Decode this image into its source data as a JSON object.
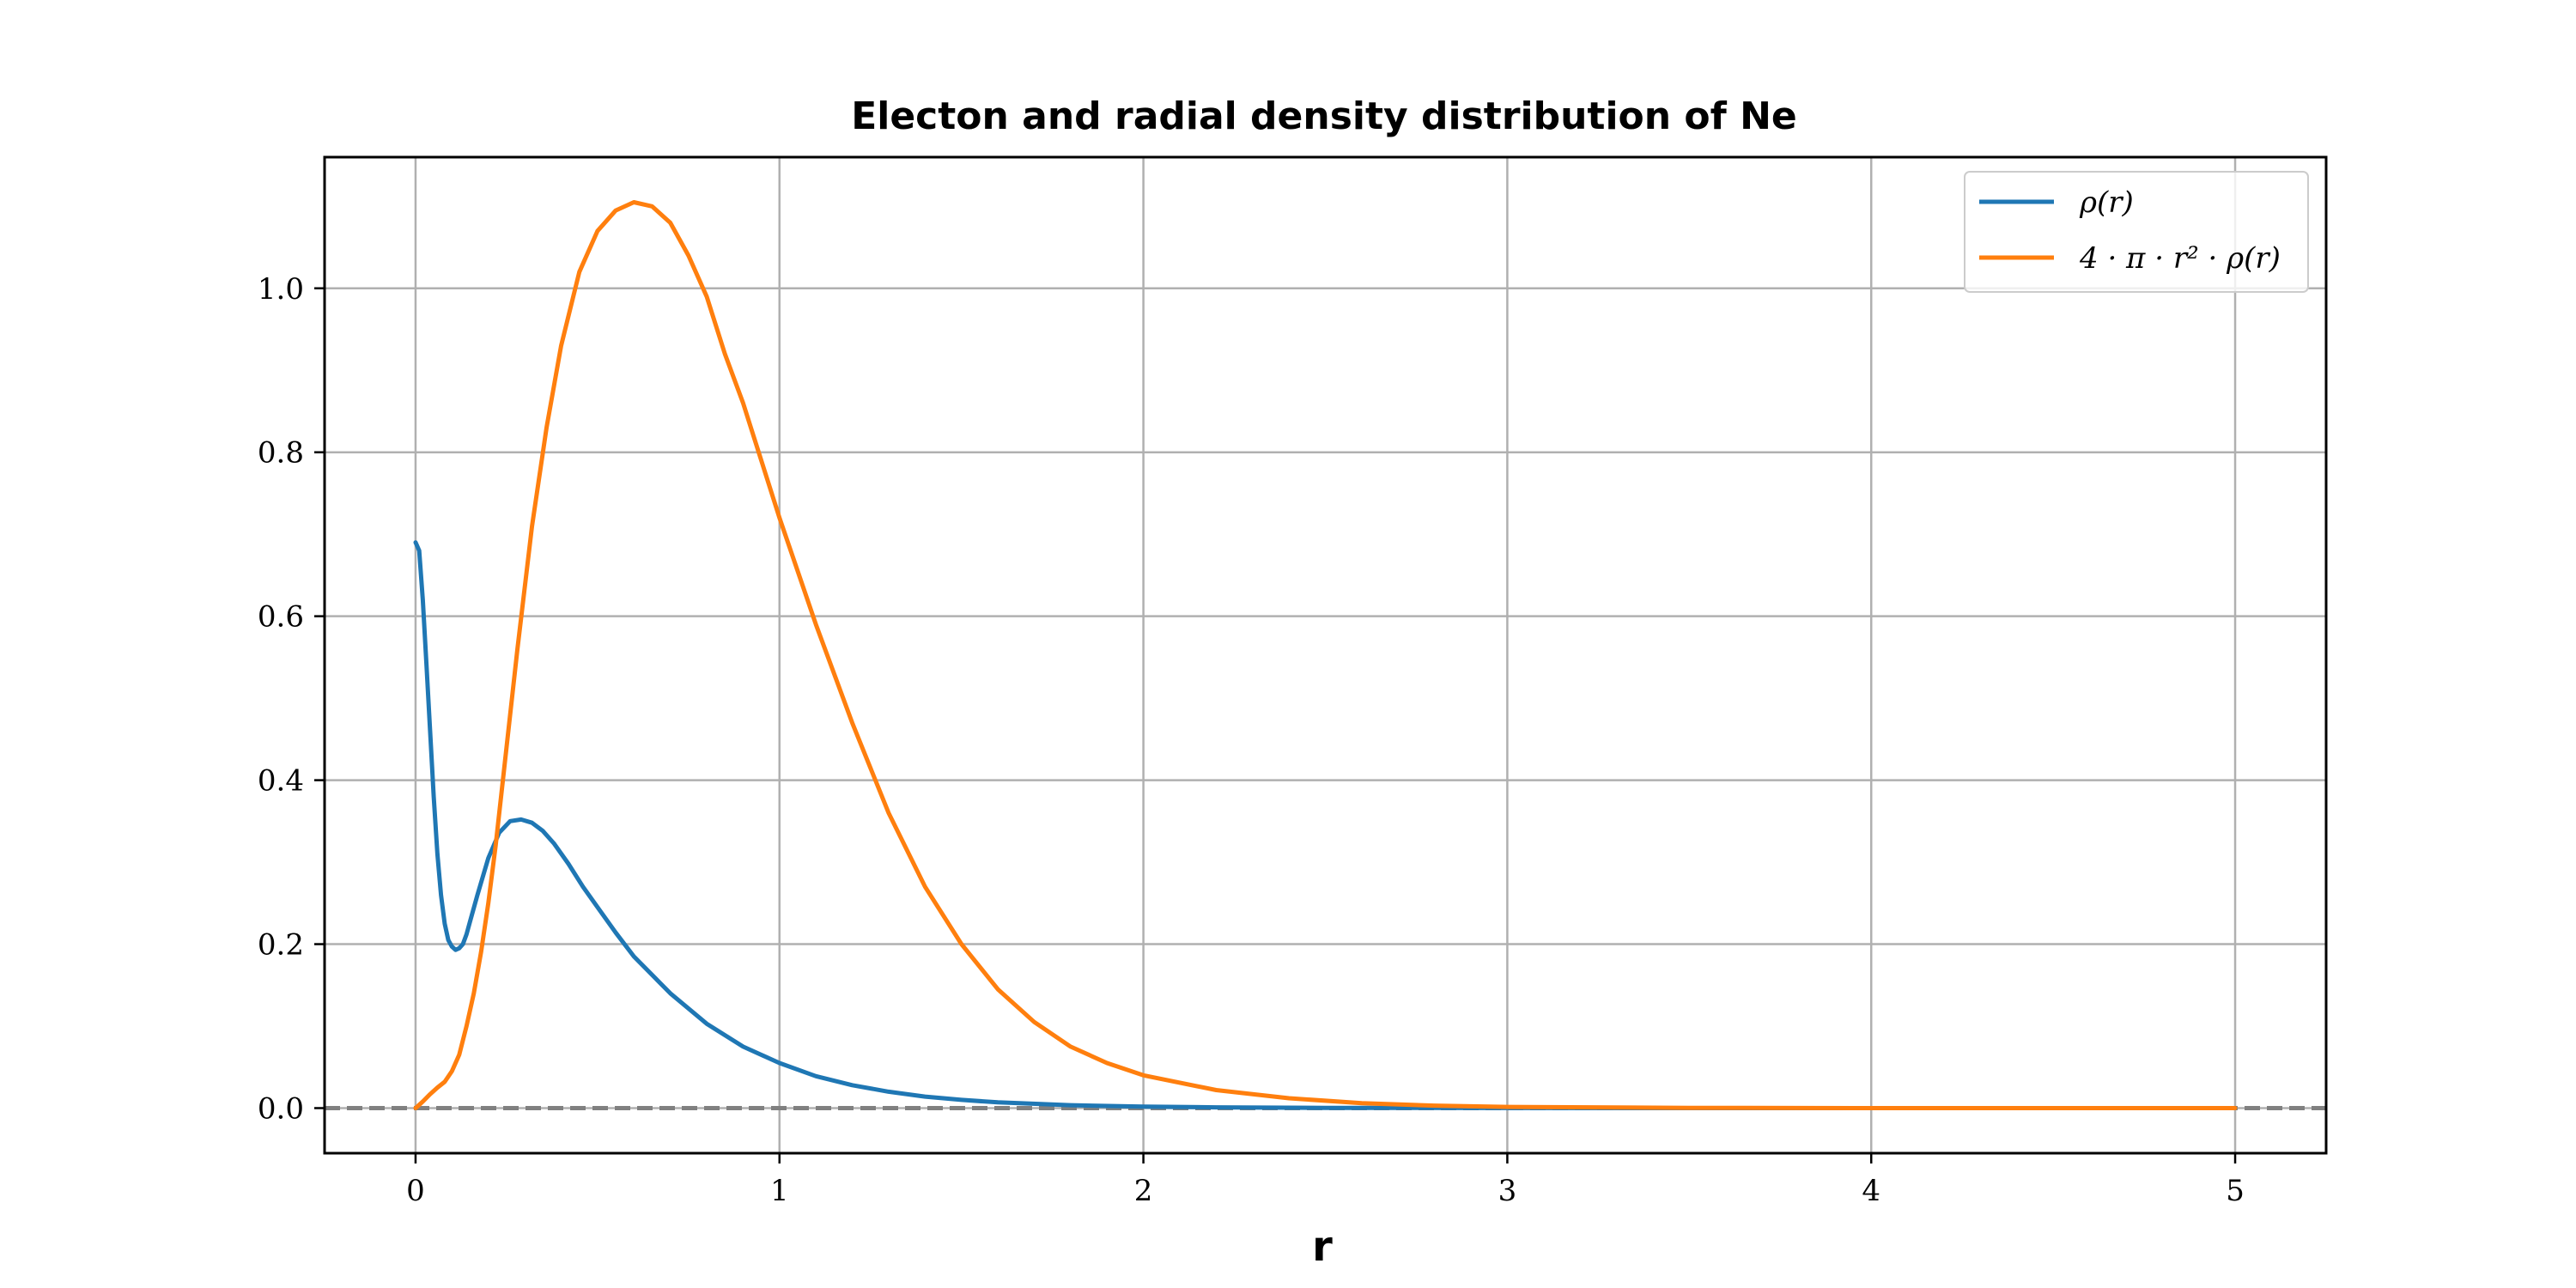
{
  "chart_data": {
    "type": "line",
    "title": "Electon and radial density distribution of Ne",
    "xlabel": "r",
    "ylabel": "",
    "xlim": [
      -0.25,
      5.25
    ],
    "ylim": [
      -0.055,
      1.16
    ],
    "xticks": [
      0,
      1,
      2,
      3,
      4,
      5
    ],
    "xtick_labels": [
      "0",
      "1",
      "2",
      "3",
      "4",
      "5"
    ],
    "yticks": [
      0.0,
      0.2,
      0.4,
      0.6,
      0.8,
      1.0
    ],
    "ytick_labels": [
      "0.0",
      "0.2",
      "0.4",
      "0.6",
      "0.8",
      "1.0"
    ],
    "grid": true,
    "legend_position": "top-right",
    "reference_line": {
      "y": 0.0,
      "style": "dashed",
      "color": "#808080"
    },
    "series": [
      {
        "name": "ρ(r)",
        "color": "#1f77b4",
        "x": [
          0.0,
          0.01,
          0.02,
          0.03,
          0.04,
          0.05,
          0.06,
          0.07,
          0.08,
          0.09,
          0.1,
          0.11,
          0.12,
          0.13,
          0.14,
          0.15,
          0.17,
          0.2,
          0.23,
          0.26,
          0.29,
          0.32,
          0.35,
          0.38,
          0.42,
          0.46,
          0.5,
          0.55,
          0.6,
          0.7,
          0.8,
          0.9,
          1.0,
          1.1,
          1.2,
          1.3,
          1.4,
          1.5,
          1.6,
          1.8,
          2.0,
          2.2,
          2.5,
          3.0,
          3.5,
          4.0,
          4.5,
          5.0
        ],
        "y": [
          0.69,
          0.68,
          0.62,
          0.54,
          0.46,
          0.38,
          0.31,
          0.26,
          0.225,
          0.205,
          0.197,
          0.193,
          0.195,
          0.2,
          0.212,
          0.228,
          0.26,
          0.305,
          0.336,
          0.35,
          0.352,
          0.348,
          0.338,
          0.323,
          0.298,
          0.27,
          0.245,
          0.214,
          0.185,
          0.14,
          0.103,
          0.075,
          0.055,
          0.039,
          0.028,
          0.02,
          0.014,
          0.01,
          0.007,
          0.0035,
          0.0018,
          0.0009,
          0.0003,
          5e-05,
          0.0,
          0.0,
          0.0,
          0.0
        ]
      },
      {
        "name": "4 · π · r² · ρ(r)",
        "color": "#ff7f0e",
        "x": [
          0.0,
          0.02,
          0.04,
          0.06,
          0.08,
          0.1,
          0.12,
          0.14,
          0.16,
          0.18,
          0.2,
          0.22,
          0.25,
          0.28,
          0.32,
          0.36,
          0.4,
          0.45,
          0.5,
          0.55,
          0.6,
          0.65,
          0.7,
          0.75,
          0.8,
          0.85,
          0.9,
          0.95,
          1.0,
          1.1,
          1.2,
          1.3,
          1.4,
          1.5,
          1.6,
          1.7,
          1.8,
          1.9,
          2.0,
          2.2,
          2.4,
          2.6,
          2.8,
          3.0,
          3.5,
          4.0,
          4.5,
          5.0
        ],
        "y": [
          0.0,
          0.008,
          0.017,
          0.025,
          0.032,
          0.045,
          0.065,
          0.1,
          0.14,
          0.19,
          0.25,
          0.32,
          0.44,
          0.56,
          0.71,
          0.83,
          0.93,
          1.02,
          1.07,
          1.095,
          1.105,
          1.1,
          1.08,
          1.04,
          0.99,
          0.92,
          0.86,
          0.79,
          0.72,
          0.59,
          0.47,
          0.36,
          0.27,
          0.2,
          0.145,
          0.105,
          0.075,
          0.055,
          0.04,
          0.022,
          0.012,
          0.006,
          0.003,
          0.0015,
          0.0003,
          0.0,
          0.0,
          0.0
        ]
      }
    ]
  }
}
